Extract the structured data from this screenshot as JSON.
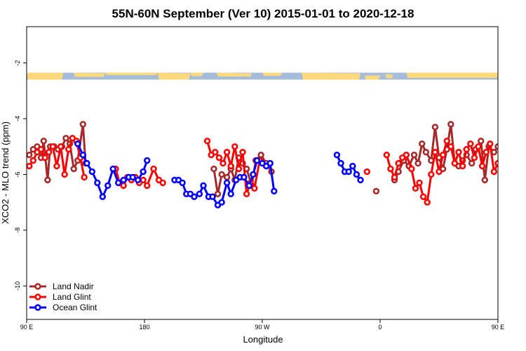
{
  "chart_data": {
    "type": "line",
    "title": "55N-60N September (Ver 10)   2015-01-01 to 2020-12-18",
    "xlabel": "Longitude",
    "ylabel": "XCO2 - MLO trend (ppm)",
    "xlim": [
      90,
      450
    ],
    "ylim": [
      -11.2,
      -0.7
    ],
    "x_ticks": [
      {
        "value": 90,
        "label": "90 E"
      },
      {
        "value": 180,
        "label": "180"
      },
      {
        "value": 270,
        "label": "90 W"
      },
      {
        "value": 360,
        "label": "0"
      },
      {
        "value": 450,
        "label": "90 E"
      }
    ],
    "y_ticks": [
      {
        "value": -2,
        "label": "-2"
      },
      {
        "value": -4,
        "label": "-4"
      },
      {
        "value": -6,
        "label": "-6"
      },
      {
        "value": -8,
        "label": "-8"
      },
      {
        "value": -10,
        "label": "-10"
      }
    ],
    "grid": false,
    "legend_position": "bottom-left",
    "land_mask_band": {
      "y_top": -2.35,
      "y_bottom": -2.6,
      "land_color": "#FBD97C",
      "water_color": "#A5BCDB"
    },
    "series": [
      {
        "name": "Land Nadir",
        "color": "#A52A2A",
        "points": [
          [
            92,
            -5.3
          ],
          [
            95,
            -5.1
          ],
          [
            98,
            -5.0
          ],
          [
            101,
            -5.4
          ],
          [
            103,
            -4.8
          ],
          [
            106,
            -6.2
          ],
          [
            108,
            -5.0
          ],
          [
            111,
            -5.0
          ],
          [
            114,
            -5.1
          ],
          [
            117,
            -5.0
          ],
          [
            120,
            -4.7
          ],
          [
            123,
            -4.9
          ],
          [
            126,
            -5.8
          ],
          [
            129,
            -5.5
          ],
          [
            133,
            -4.2
          ],
          [
            135,
            -5.6
          ],
          [
            233,
            -5.8
          ],
          [
            236,
            -6.7
          ],
          [
            239,
            -6.0
          ],
          [
            243,
            -6.1
          ],
          [
            246,
            -5.8
          ],
          [
            249,
            -6.2
          ],
          [
            252,
            -5.4
          ],
          [
            255,
            -5.6
          ],
          [
            258,
            -5.8
          ],
          [
            262,
            -6.4
          ],
          [
            265,
            -5.5
          ],
          [
            269,
            -5.3
          ],
          [
            273,
            -5.6
          ],
          [
            277,
            -5.9
          ],
          [
            357,
            -6.6
          ],
          [
            371,
            -6.2
          ],
          [
            374,
            -5.9
          ],
          [
            378,
            -5.5
          ],
          [
            382,
            -5.7
          ],
          [
            386,
            -5.3
          ],
          [
            389,
            -5.6
          ],
          [
            392,
            -4.9
          ],
          [
            395,
            -5.2
          ],
          [
            399,
            -5.5
          ],
          [
            402,
            -4.3
          ],
          [
            405,
            -5.4
          ],
          [
            408,
            -5.8
          ],
          [
            411,
            -5.1
          ],
          [
            414,
            -4.2
          ],
          [
            417,
            -5.6
          ],
          [
            420,
            -5.7
          ],
          [
            423,
            -5.5
          ],
          [
            426,
            -5.3
          ],
          [
            430,
            -5.6
          ],
          [
            433,
            -5.1
          ],
          [
            437,
            -4.8
          ],
          [
            440,
            -6.2
          ],
          [
            443,
            -5.0
          ],
          [
            447,
            -5.2
          ],
          [
            450,
            -5.0
          ],
          [
            453,
            -4.7
          ],
          [
            456,
            -5.2
          ],
          [
            459,
            -5.3
          ],
          [
            462,
            -5.5
          ],
          [
            466,
            -4.2
          ],
          [
            469,
            -5.6
          ]
        ]
      },
      {
        "name": "Land Glint",
        "color": "#FF0000",
        "points": [
          [
            92,
            -5.7
          ],
          [
            95,
            -5.5
          ],
          [
            98,
            -5.2
          ],
          [
            101,
            -5.1
          ],
          [
            104,
            -5.4
          ],
          [
            107,
            -5.2
          ],
          [
            110,
            -5.0
          ],
          [
            113,
            -5.7
          ],
          [
            116,
            -5.0
          ],
          [
            119,
            -6.0
          ],
          [
            122,
            -5.1
          ],
          [
            125,
            -4.7
          ],
          [
            128,
            -4.8
          ],
          [
            131,
            -5.4
          ],
          [
            134,
            -6.1
          ],
          [
            158,
            -5.8
          ],
          [
            161,
            -6.3
          ],
          [
            164,
            -6.4
          ],
          [
            167,
            -6.1
          ],
          [
            170,
            -6.2
          ],
          [
            173,
            -6.1
          ],
          [
            176,
            -6.3
          ],
          [
            179,
            -6.2
          ],
          [
            182,
            -6.4
          ],
          [
            187,
            -5.8
          ],
          [
            191,
            -6.2
          ],
          [
            194,
            -6.3
          ],
          [
            228,
            -4.8
          ],
          [
            231,
            -5.3
          ],
          [
            234,
            -5.2
          ],
          [
            237,
            -5.4
          ],
          [
            240,
            -5.6
          ],
          [
            243,
            -5.2
          ],
          [
            246,
            -5.7
          ],
          [
            249,
            -5.0
          ],
          [
            252,
            -5.8
          ],
          [
            255,
            -5.2
          ],
          [
            258,
            -6.7
          ],
          [
            261,
            -6.3
          ],
          [
            264,
            -6.5
          ],
          [
            268,
            -5.5
          ],
          [
            350,
            -5.9
          ],
          [
            365,
            -5.3
          ],
          [
            368,
            -5.8
          ],
          [
            371,
            -6.1
          ],
          [
            374,
            -5.6
          ],
          [
            377,
            -5.4
          ],
          [
            380,
            -5.3
          ],
          [
            384,
            -5.8
          ],
          [
            387,
            -6.5
          ],
          [
            390,
            -6.3
          ],
          [
            393,
            -6.8
          ],
          [
            396,
            -7.0
          ],
          [
            399,
            -6.0
          ],
          [
            402,
            -5.2
          ],
          [
            405,
            -5.9
          ],
          [
            408,
            -5.3
          ],
          [
            411,
            -4.8
          ],
          [
            414,
            -5.0
          ],
          [
            417,
            -5.6
          ],
          [
            420,
            -5.2
          ],
          [
            423,
            -5.7
          ],
          [
            426,
            -5.1
          ],
          [
            429,
            -4.9
          ],
          [
            432,
            -5.4
          ],
          [
            435,
            -5.0
          ],
          [
            438,
            -5.7
          ],
          [
            441,
            -5.2
          ],
          [
            444,
            -4.9
          ],
          [
            447,
            -5.9
          ],
          [
            450,
            -5.6
          ],
          [
            453,
            -4.7
          ],
          [
            456,
            -4.8
          ],
          [
            459,
            -5.3
          ],
          [
            462,
            -5.7
          ],
          [
            465,
            -6.1
          ]
        ]
      },
      {
        "name": "Ocean Glint",
        "color": "#0000FF",
        "points": [
          [
            129,
            -4.9
          ],
          [
            133,
            -5.3
          ],
          [
            136,
            -5.6
          ],
          [
            140,
            -5.9
          ],
          [
            144,
            -6.3
          ],
          [
            148,
            -6.8
          ],
          [
            152,
            -6.4
          ],
          [
            156,
            -5.8
          ],
          [
            160,
            -6.3
          ],
          [
            164,
            -6.2
          ],
          [
            168,
            -6.1
          ],
          [
            171,
            -6.1
          ],
          [
            175,
            -6.2
          ],
          [
            179,
            -5.9
          ],
          [
            182,
            -5.5
          ],
          [
            203,
            -6.2
          ],
          [
            206,
            -6.2
          ],
          [
            209,
            -6.3
          ],
          [
            212,
            -6.7
          ],
          [
            215,
            -6.7
          ],
          [
            218,
            -6.8
          ],
          [
            222,
            -6.7
          ],
          [
            225,
            -6.4
          ],
          [
            229,
            -6.8
          ],
          [
            232,
            -6.8
          ],
          [
            236,
            -7.1
          ],
          [
            239,
            -7.0
          ],
          [
            243,
            -6.3
          ],
          [
            246,
            -6.7
          ],
          [
            250,
            -6.2
          ],
          [
            253,
            -6.1
          ],
          [
            256,
            -6.1
          ],
          [
            260,
            -6.4
          ],
          [
            263,
            -6.0
          ],
          [
            266,
            -5.5
          ],
          [
            270,
            -5.6
          ],
          [
            273,
            -5.7
          ],
          [
            276,
            -5.6
          ],
          [
            279,
            -6.6
          ],
          [
            327,
            -5.3
          ],
          [
            330,
            -5.6
          ],
          [
            333,
            -5.9
          ],
          [
            336,
            -5.9
          ],
          [
            339,
            -5.7
          ],
          [
            342,
            -6.0
          ],
          [
            345,
            -6.2
          ]
        ]
      }
    ]
  }
}
